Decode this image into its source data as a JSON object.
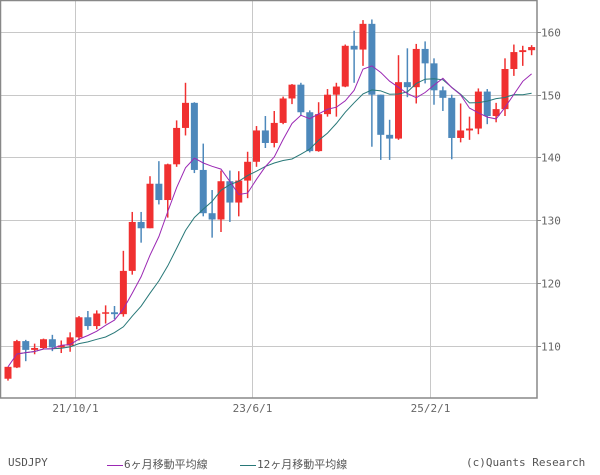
{
  "chart_data": {
    "type": "candlestick",
    "title": "USDJPY",
    "symbol": "USDJPY",
    "period": "monthly",
    "xlabel": "",
    "ylabel": "",
    "ylim": [
      102.6,
      165.5
    ],
    "y_ticks": [
      110,
      120,
      130,
      140,
      150,
      160
    ],
    "x_ticks": [
      {
        "label": "21/10/1",
        "index": 8
      },
      {
        "label": "23/6/1",
        "index": 28
      },
      {
        "label": "25/2/1",
        "index": 48
      }
    ],
    "grid": true,
    "legend_position": "bottom",
    "colors": {
      "up": "#f03030",
      "down": "#4d88bb",
      "ma6": "#9b28b4",
      "ma12": "#287878",
      "grid": "#c8c8c8",
      "frame": "#888888"
    },
    "candles": [
      {
        "o": 104.7,
        "h": 106.6,
        "l": 104.4,
        "c": 106.6
      },
      {
        "o": 106.5,
        "h": 110.9,
        "l": 106.4,
        "c": 110.7
      },
      {
        "o": 110.7,
        "h": 110.9,
        "l": 107.5,
        "c": 109.3
      },
      {
        "o": 109.3,
        "h": 110.3,
        "l": 108.6,
        "c": 109.6
      },
      {
        "o": 109.6,
        "h": 111.1,
        "l": 109.4,
        "c": 111.0
      },
      {
        "o": 111.0,
        "h": 111.7,
        "l": 109.1,
        "c": 109.7
      },
      {
        "o": 109.7,
        "h": 110.8,
        "l": 108.8,
        "c": 110.0
      },
      {
        "o": 110.0,
        "h": 112.1,
        "l": 109.0,
        "c": 111.3
      },
      {
        "o": 111.3,
        "h": 114.7,
        "l": 110.8,
        "c": 114.5
      },
      {
        "o": 114.5,
        "h": 115.5,
        "l": 112.5,
        "c": 113.1
      },
      {
        "o": 113.1,
        "h": 115.6,
        "l": 112.6,
        "c": 115.1
      },
      {
        "o": 115.1,
        "h": 116.4,
        "l": 113.5,
        "c": 115.3
      },
      {
        "o": 115.3,
        "h": 116.3,
        "l": 114.2,
        "c": 115.0
      },
      {
        "o": 115.0,
        "h": 125.1,
        "l": 114.6,
        "c": 121.9
      },
      {
        "o": 121.9,
        "h": 131.3,
        "l": 121.3,
        "c": 129.7
      },
      {
        "o": 129.7,
        "h": 131.3,
        "l": 126.4,
        "c": 128.7
      },
      {
        "o": 128.7,
        "h": 137.0,
        "l": 128.7,
        "c": 135.8
      },
      {
        "o": 135.8,
        "h": 139.4,
        "l": 132.5,
        "c": 133.2
      },
      {
        "o": 133.2,
        "h": 139.0,
        "l": 130.4,
        "c": 138.9
      },
      {
        "o": 138.9,
        "h": 145.9,
        "l": 138.5,
        "c": 144.7
      },
      {
        "o": 144.7,
        "h": 151.9,
        "l": 143.5,
        "c": 148.7
      },
      {
        "o": 148.7,
        "h": 148.8,
        "l": 137.5,
        "c": 138.0
      },
      {
        "o": 138.0,
        "h": 142.2,
        "l": 130.6,
        "c": 131.1
      },
      {
        "o": 131.1,
        "h": 134.8,
        "l": 127.2,
        "c": 130.1
      },
      {
        "o": 130.1,
        "h": 137.9,
        "l": 128.1,
        "c": 136.2
      },
      {
        "o": 136.2,
        "h": 137.9,
        "l": 129.7,
        "c": 132.8
      },
      {
        "o": 132.8,
        "h": 137.8,
        "l": 130.6,
        "c": 136.3
      },
      {
        "o": 136.3,
        "h": 140.9,
        "l": 133.5,
        "c": 139.3
      },
      {
        "o": 139.3,
        "h": 145.0,
        "l": 138.5,
        "c": 144.3
      },
      {
        "o": 144.3,
        "h": 146.6,
        "l": 141.5,
        "c": 142.3
      },
      {
        "o": 142.3,
        "h": 147.4,
        "l": 141.6,
        "c": 145.5
      },
      {
        "o": 145.5,
        "h": 149.7,
        "l": 145.3,
        "c": 149.4
      },
      {
        "o": 149.4,
        "h": 151.7,
        "l": 148.5,
        "c": 151.6
      },
      {
        "o": 151.6,
        "h": 151.9,
        "l": 146.7,
        "c": 147.2
      },
      {
        "o": 147.2,
        "h": 147.5,
        "l": 140.8,
        "c": 141.0
      },
      {
        "o": 141.0,
        "h": 148.8,
        "l": 140.9,
        "c": 146.9
      },
      {
        "o": 146.9,
        "h": 150.9,
        "l": 146.5,
        "c": 150.0
      },
      {
        "o": 150.0,
        "h": 151.9,
        "l": 146.5,
        "c": 151.3
      },
      {
        "o": 151.3,
        "h": 158.0,
        "l": 151.2,
        "c": 157.8
      },
      {
        "o": 157.8,
        "h": 160.2,
        "l": 151.9,
        "c": 157.2
      },
      {
        "o": 157.2,
        "h": 161.9,
        "l": 154.6,
        "c": 161.3
      },
      {
        "o": 161.3,
        "h": 162.0,
        "l": 141.7,
        "c": 150.0
      },
      {
        "o": 150.0,
        "h": 150.0,
        "l": 139.6,
        "c": 143.6
      },
      {
        "o": 143.6,
        "h": 146.0,
        "l": 139.6,
        "c": 143.0
      },
      {
        "o": 143.0,
        "h": 156.3,
        "l": 142.8,
        "c": 152.0
      },
      {
        "o": 152.0,
        "h": 157.4,
        "l": 149.6,
        "c": 151.2
      },
      {
        "o": 151.2,
        "h": 158.1,
        "l": 148.6,
        "c": 157.3
      },
      {
        "o": 157.3,
        "h": 158.5,
        "l": 151.8,
        "c": 155.0
      },
      {
        "o": 155.0,
        "h": 155.8,
        "l": 148.4,
        "c": 150.7
      },
      {
        "o": 150.7,
        "h": 151.3,
        "l": 147.4,
        "c": 149.5
      },
      {
        "o": 149.5,
        "h": 150.0,
        "l": 139.7,
        "c": 143.1
      },
      {
        "o": 143.1,
        "h": 148.6,
        "l": 142.4,
        "c": 144.3
      },
      {
        "o": 144.3,
        "h": 146.5,
        "l": 142.8,
        "c": 144.6
      },
      {
        "o": 144.6,
        "h": 151.0,
        "l": 143.7,
        "c": 150.5
      },
      {
        "o": 150.5,
        "h": 150.9,
        "l": 145.3,
        "c": 146.6
      },
      {
        "o": 146.6,
        "h": 148.7,
        "l": 145.6,
        "c": 147.7
      },
      {
        "o": 147.7,
        "h": 155.8,
        "l": 146.6,
        "c": 154.1
      },
      {
        "o": 154.1,
        "h": 158.0,
        "l": 153.0,
        "c": 156.8
      },
      {
        "o": 156.8,
        "h": 157.8,
        "l": 154.6,
        "c": 157.1
      },
      {
        "o": 157.1,
        "h": 157.9,
        "l": 156.3,
        "c": 157.6
      }
    ]
  },
  "legend": {
    "symbol_label": "USDJPY",
    "ma6_label": "6ヶ月移動平均線",
    "ma12_label": "12ヶ月移動平均線",
    "copyright": "(c)Quants Research"
  }
}
